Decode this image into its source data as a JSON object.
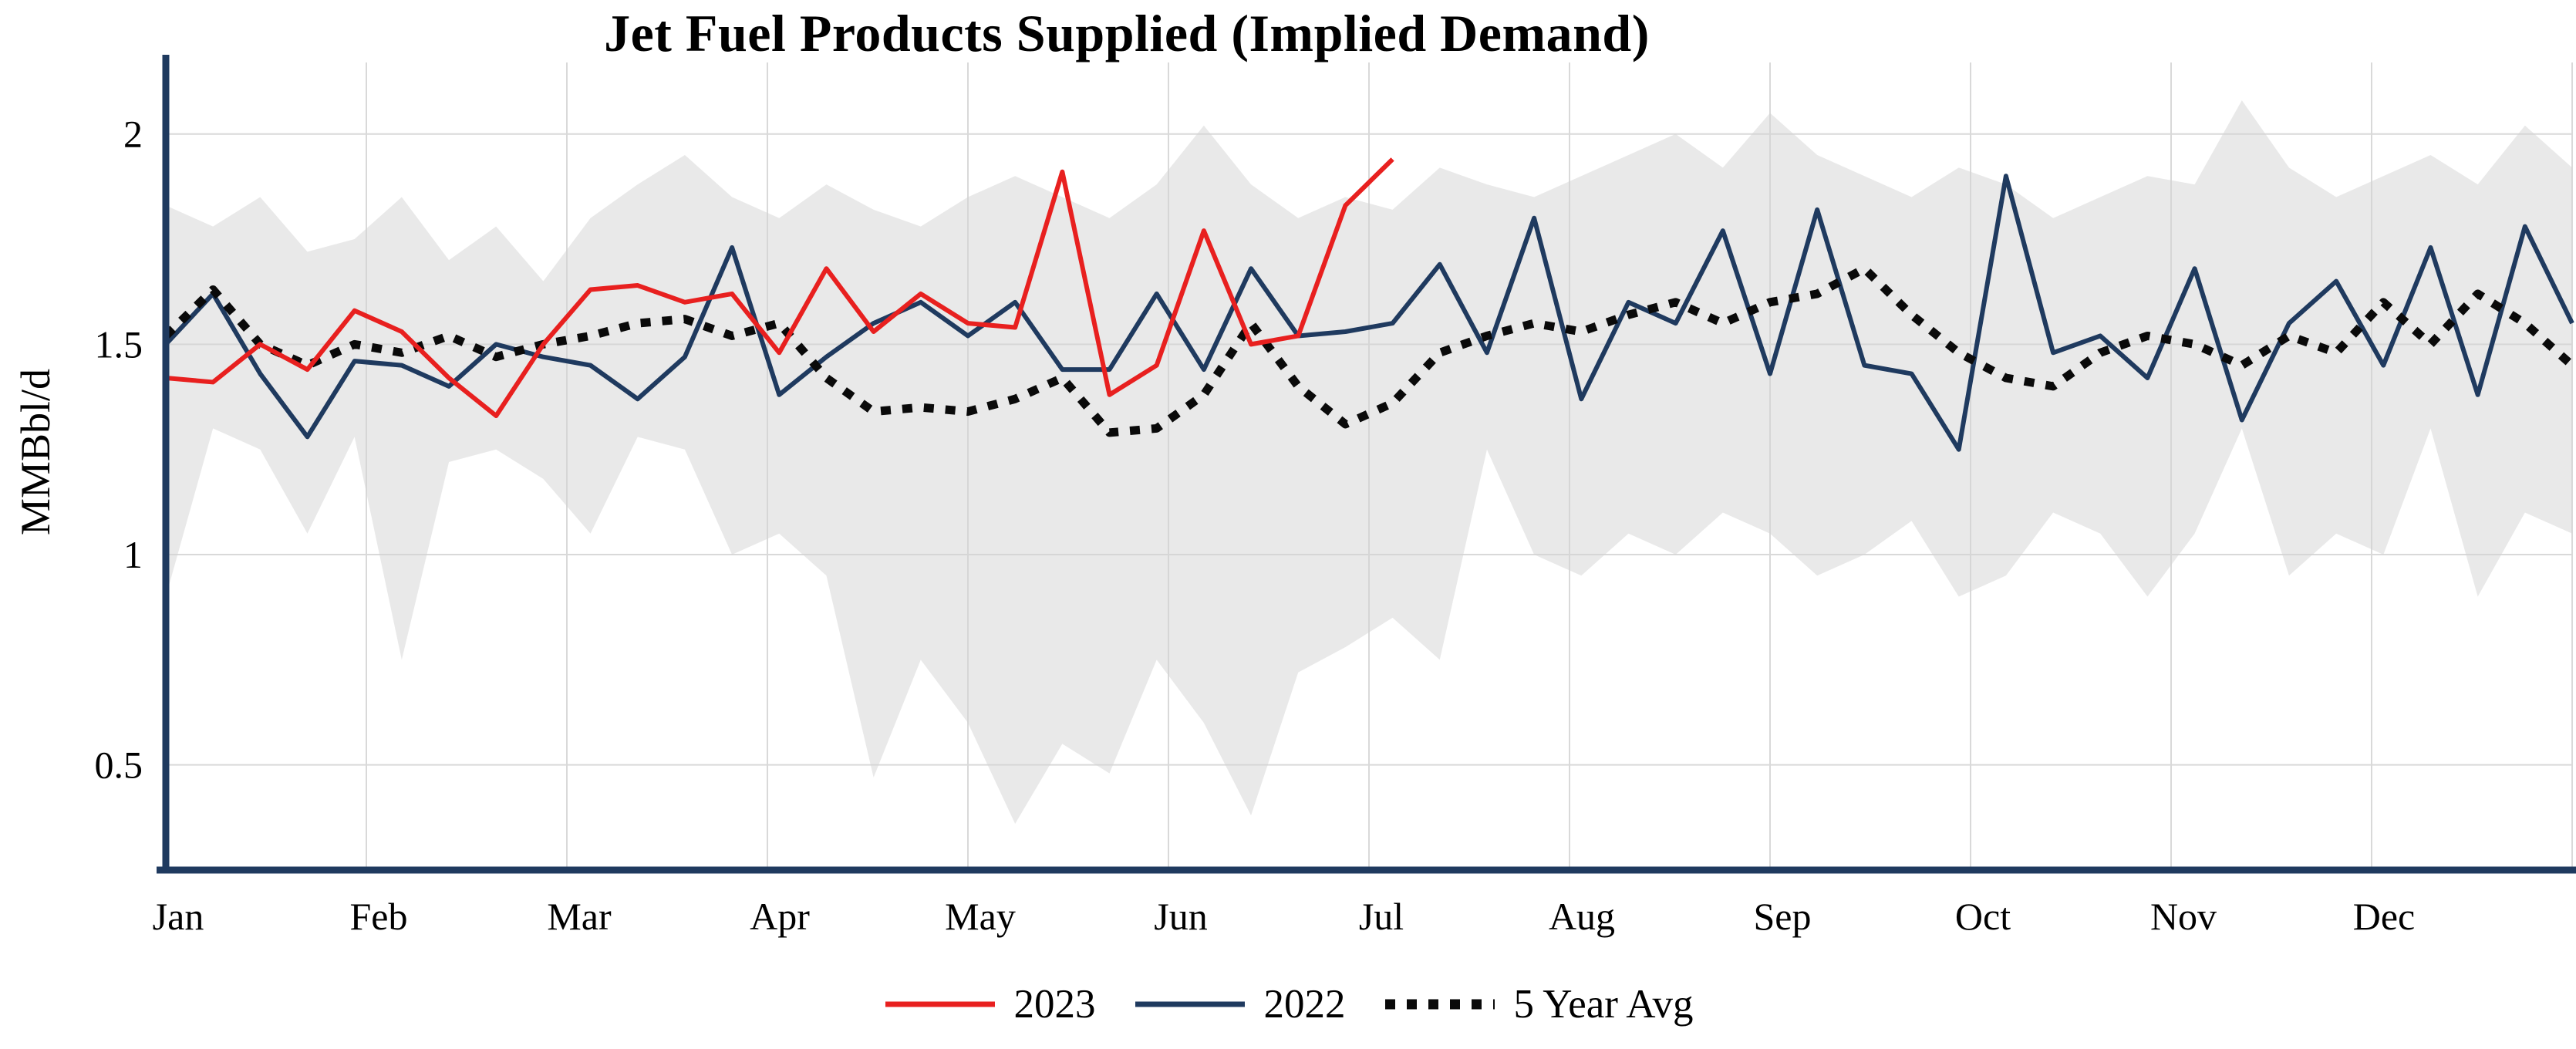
{
  "chart_data": {
    "type": "line",
    "title": "Jet Fuel Products Supplied (Implied Demand)",
    "ylabel": "MMBbl/d",
    "ylim": [
      0.25,
      2.17
    ],
    "weeks": 52,
    "months": [
      "Jan",
      "Feb",
      "Mar",
      "Apr",
      "May",
      "Jun",
      "Jul",
      "Aug",
      "Sep",
      "Oct",
      "Nov",
      "Dec"
    ],
    "yticks": [
      {
        "value": 2,
        "label": "2"
      },
      {
        "value": 1.5,
        "label": "1.5"
      },
      {
        "value": 1,
        "label": "1"
      },
      {
        "value": 0.5,
        "label": "0.5"
      }
    ],
    "grid": true,
    "legend_position": "bottom-center",
    "colors": {
      "grid": "#d9d9d9",
      "axis": "#1f3a5f",
      "background": "#ffffff",
      "band": "#d3d3d3"
    },
    "band": {
      "name": "5-year-range",
      "color": "#d3d3d3",
      "opacity": 0.5,
      "upper": [
        1.83,
        1.78,
        1.85,
        1.72,
        1.75,
        1.85,
        1.7,
        1.78,
        1.65,
        1.8,
        1.88,
        1.95,
        1.85,
        1.8,
        1.88,
        1.82,
        1.78,
        1.85,
        1.9,
        1.85,
        1.8,
        1.88,
        2.02,
        1.88,
        1.8,
        1.85,
        1.82,
        1.92,
        1.88,
        1.85,
        1.9,
        1.95,
        2.0,
        1.92,
        2.05,
        1.95,
        1.9,
        1.85,
        1.92,
        1.88,
        1.8,
        1.85,
        1.9,
        1.88,
        2.08,
        1.92,
        1.85,
        1.9,
        1.95,
        1.88,
        2.02,
        1.92
      ],
      "lower": [
        0.9,
        1.3,
        1.25,
        1.05,
        1.28,
        0.75,
        1.22,
        1.25,
        1.18,
        1.05,
        1.28,
        1.25,
        1.0,
        1.05,
        0.95,
        0.47,
        0.75,
        0.6,
        0.36,
        0.55,
        0.48,
        0.75,
        0.6,
        0.38,
        0.72,
        0.78,
        0.85,
        0.75,
        1.25,
        1.0,
        0.95,
        1.05,
        1.0,
        1.1,
        1.05,
        0.95,
        1.0,
        1.08,
        0.9,
        0.95,
        1.1,
        1.05,
        0.9,
        1.05,
        1.3,
        0.95,
        1.05,
        1.0,
        1.3,
        0.9,
        1.1,
        1.05
      ]
    },
    "series": [
      {
        "name": "2023",
        "color": "#e8201f",
        "width": 6,
        "values": [
          1.42,
          1.41,
          1.5,
          1.44,
          1.58,
          1.53,
          1.42,
          1.33,
          1.5,
          1.63,
          1.64,
          1.6,
          1.62,
          1.48,
          1.68,
          1.53,
          1.62,
          1.55,
          1.54,
          1.91,
          1.38,
          1.45,
          1.77,
          1.5,
          1.52,
          1.83,
          1.94
        ]
      },
      {
        "name": "2022",
        "color": "#1f3a5f",
        "width": 6,
        "values": [
          1.5,
          1.62,
          1.43,
          1.28,
          1.46,
          1.45,
          1.4,
          1.5,
          1.47,
          1.45,
          1.37,
          1.47,
          1.73,
          1.38,
          1.47,
          1.55,
          1.6,
          1.52,
          1.6,
          1.44,
          1.44,
          1.62,
          1.44,
          1.68,
          1.52,
          1.53,
          1.55,
          1.69,
          1.48,
          1.8,
          1.37,
          1.6,
          1.55,
          1.77,
          1.43,
          1.82,
          1.45,
          1.43,
          1.25,
          1.9,
          1.48,
          1.52,
          1.42,
          1.68,
          1.32,
          1.55,
          1.65,
          1.45,
          1.73,
          1.38,
          1.78,
          1.55
        ]
      },
      {
        "name": "5 Year Avg",
        "color": "#0a0a0a",
        "width": 11,
        "dash": "13 15",
        "values": [
          1.52,
          1.63,
          1.5,
          1.45,
          1.5,
          1.48,
          1.52,
          1.47,
          1.5,
          1.52,
          1.55,
          1.56,
          1.52,
          1.55,
          1.42,
          1.34,
          1.35,
          1.34,
          1.37,
          1.42,
          1.29,
          1.3,
          1.38,
          1.55,
          1.4,
          1.31,
          1.36,
          1.48,
          1.52,
          1.55,
          1.53,
          1.57,
          1.6,
          1.55,
          1.6,
          1.62,
          1.68,
          1.57,
          1.48,
          1.42,
          1.4,
          1.48,
          1.52,
          1.5,
          1.45,
          1.52,
          1.48,
          1.6,
          1.5,
          1.62,
          1.55,
          1.45
        ]
      }
    ]
  }
}
